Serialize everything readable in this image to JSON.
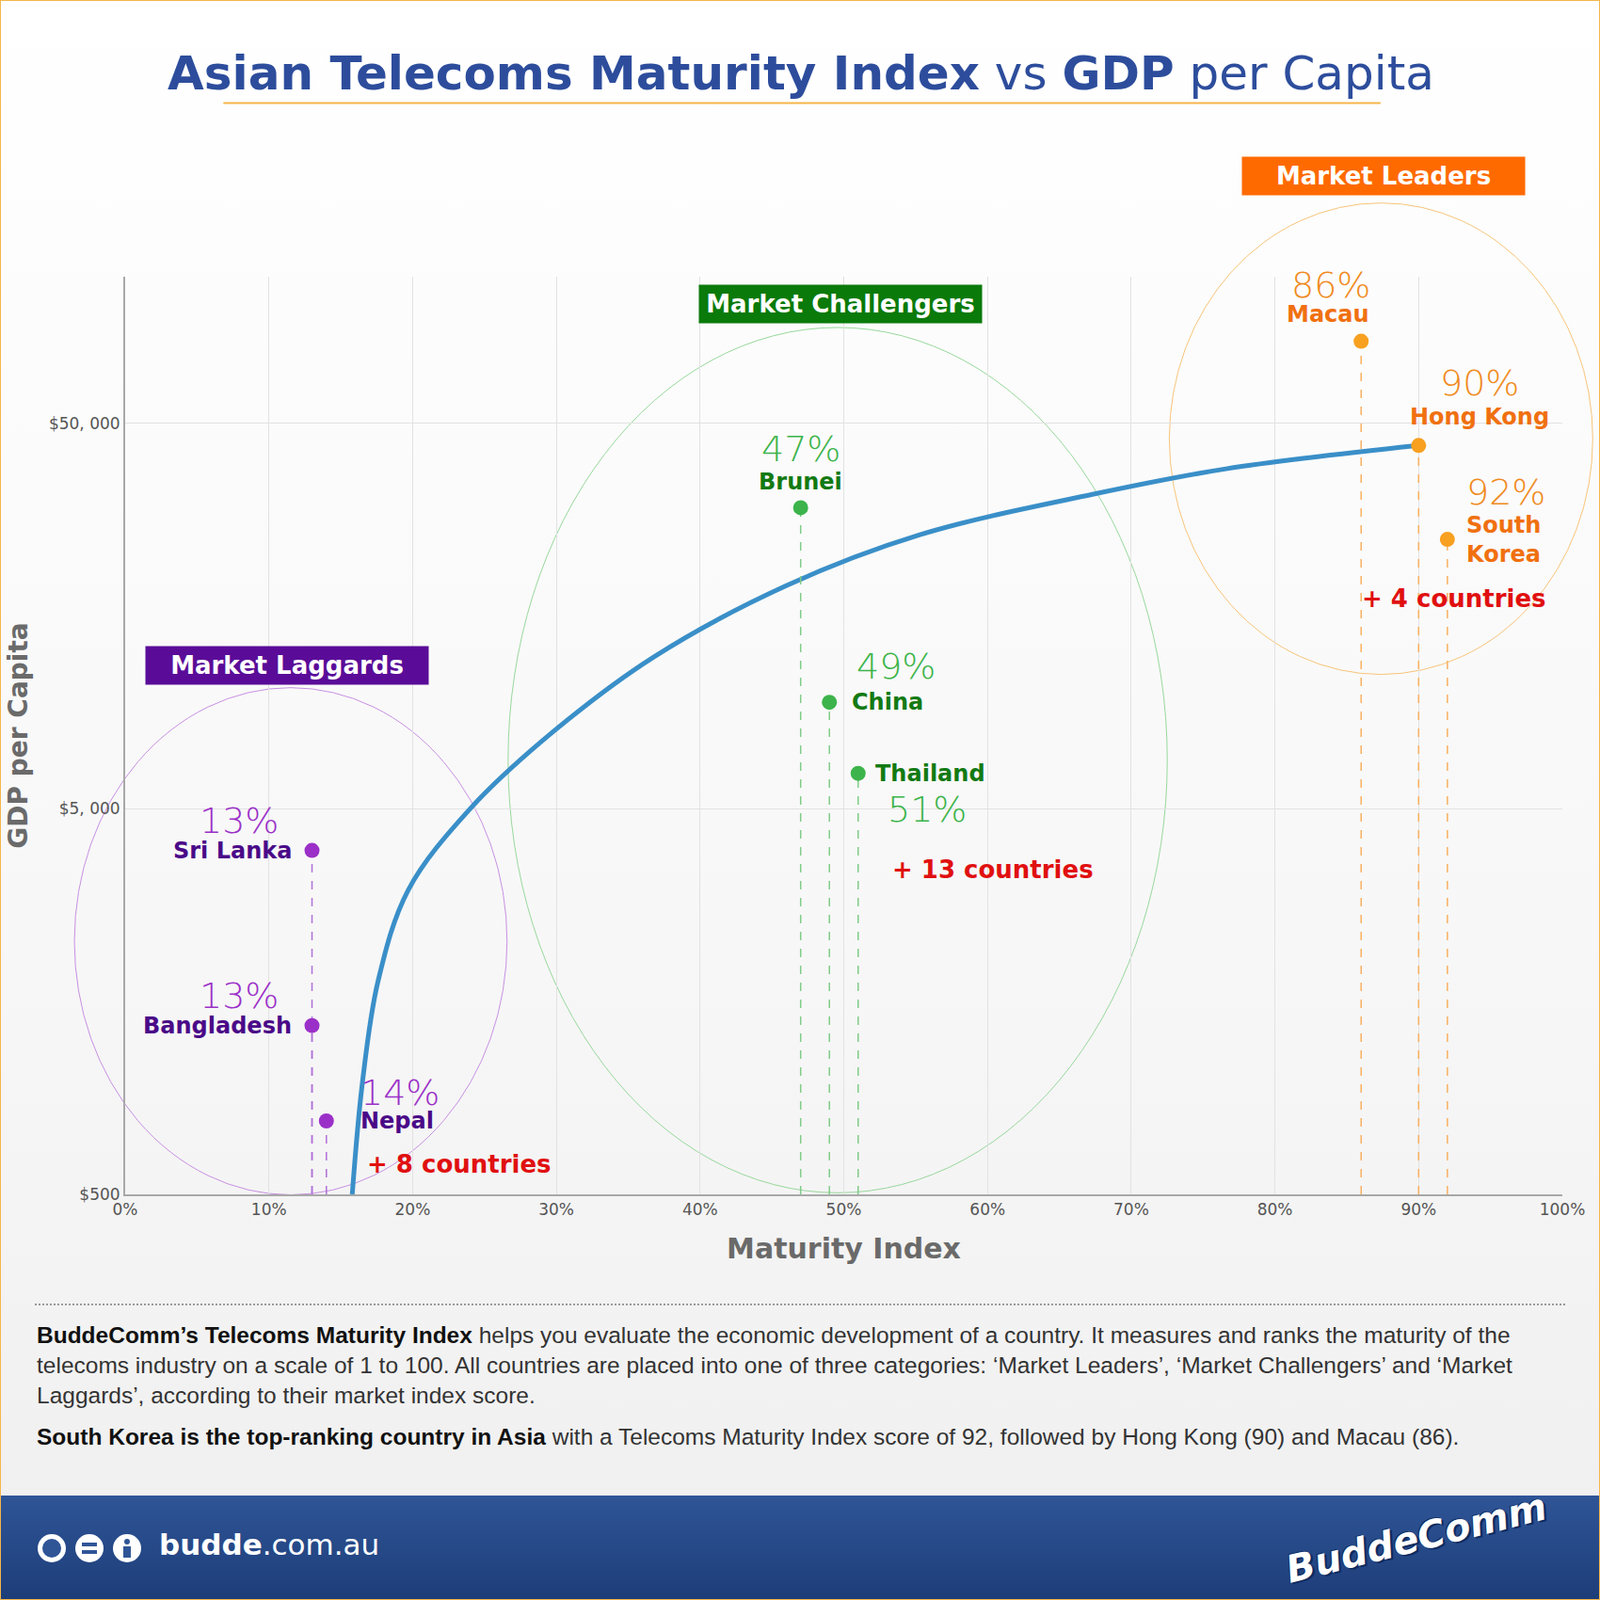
{
  "chart_data": {
    "type": "scatter",
    "title": "Asian Telecoms Maturity Index vs GDP per Capita",
    "title_bold": [
      "Asian Telecoms Maturity Index",
      "GDP"
    ],
    "x_label": "Maturity Index",
    "y_label": "GDP per Capita",
    "xlim": [
      0,
      100
    ],
    "xticks": [
      {
        "value": 0,
        "label": "0%"
      },
      {
        "value": 10,
        "label": "10%"
      },
      {
        "value": 20,
        "label": "20%"
      },
      {
        "value": 30,
        "label": "30%"
      },
      {
        "value": 40,
        "label": "40%"
      },
      {
        "value": 50,
        "label": "50%"
      },
      {
        "value": 60,
        "label": "60%"
      },
      {
        "value": 70,
        "label": "70%"
      },
      {
        "value": 80,
        "label": "80%"
      },
      {
        "value": 90,
        "label": "90%"
      },
      {
        "value": 100,
        "label": "100%"
      }
    ],
    "ylim": [
      500,
      120000
    ],
    "yticks": [
      {
        "value": 500,
        "label": "$500"
      },
      {
        "value": 5000,
        "label": "$5, 000"
      },
      {
        "value": 50000,
        "label": "$50, 000"
      }
    ],
    "log": "y",
    "grid": true,
    "data_labels": true,
    "series": [
      {
        "type": "line",
        "line_style": "solid",
        "color": "#3a8fc8",
        "x": [
          15.8,
          16.5,
          17.6,
          19.7,
          24.0,
          29.7,
          36.8,
          46.0,
          55.3,
          67.3,
          76.6,
          90.0
        ],
        "values": [
          500,
          970,
          1790,
          3080,
          5000,
          7880,
          12400,
          18960,
          25700,
          32700,
          38100,
          43800
        ]
      },
      {
        "name": "Market Laggards",
        "type": "scatter",
        "marker": "circle",
        "color": "#9b30c8",
        "categories": [
          "Sri Lanka",
          "Bangladesh",
          "Nepal"
        ],
        "x": [
          13,
          13,
          14
        ],
        "x_labels": [
          "13%",
          "13%",
          "14%"
        ],
        "values": [
          3900,
          1370,
          775
        ],
        "note": "+ 8 countries"
      },
      {
        "name": "Market Challengers",
        "type": "scatter",
        "marker": "circle",
        "color": "#3cb44b",
        "categories": [
          "Brunei",
          "China",
          "Thailand"
        ],
        "x": [
          47,
          49,
          51
        ],
        "x_labels": [
          "47%",
          "49%",
          "51%"
        ],
        "values": [
          30200,
          9450,
          6180
        ],
        "note": "+ 13 countries"
      },
      {
        "name": "Market Leaders",
        "type": "scatter",
        "marker": "circle",
        "color": "#f8a020",
        "categories": [
          "Macau",
          "Hong Kong",
          "South Korea"
        ],
        "x": [
          86,
          90,
          92
        ],
        "x_labels": [
          "86%",
          "90%",
          "92%"
        ],
        "values": [
          81600,
          43800,
          25000
        ],
        "note": "+ 4 countries"
      }
    ]
  },
  "footer": {
    "paragraphs": [
      {
        "bold": "BuddeComm’s Telecoms Maturity Index",
        "text": " helps you evaluate the economic development of a country. It measures and ranks the maturity of the telecoms industry on a scale of 1 to 100. All countries are placed into one of three categories: ‘Market Leaders’, ‘Market Challengers’ and ‘Market Laggards’, according to their market index score."
      },
      {
        "bold": "South Korea is the top-ranking country in Asia",
        "text": " with a Telecoms Maturity Index score of 92, followed by Hong Kong (90) and Macau (86)."
      }
    ],
    "website": "budde.com.au",
    "logo": "BuddeComm"
  }
}
